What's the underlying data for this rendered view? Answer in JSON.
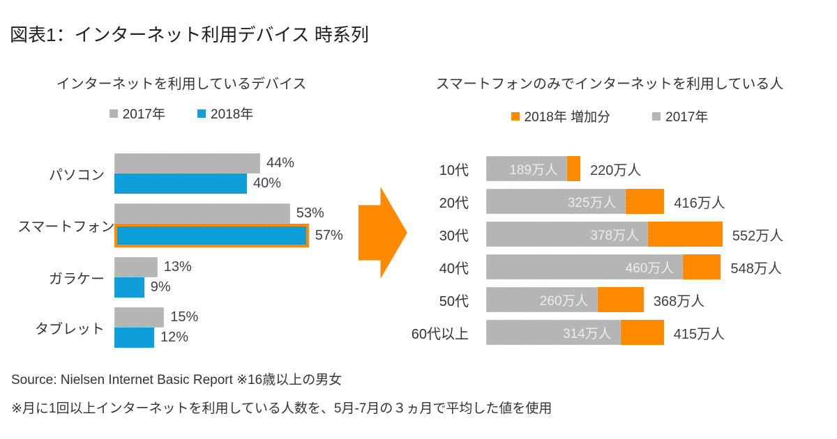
{
  "page_title": "図表1：インターネット利用デバイス 時系列",
  "colors": {
    "gray": "#b5b5b5",
    "blue": "#0f9fd8",
    "orange": "#ff8a00",
    "text": "#333333",
    "valueText": "#3d4049",
    "inbarText": "#ededed",
    "titleText": "#1f1f1f"
  },
  "arrow": {
    "shape": "right-block-arrow",
    "color": "#ff8a00"
  },
  "footer": {
    "source_line": "Source: Nielsen Internet Basic Report  ※16歳以上の男女",
    "note_line": "※月に1回以上インターネットを利用している人数を、5月-7月の３ヵ月で平均した値を使用"
  },
  "chart_data": [
    {
      "type": "bar",
      "orientation": "horizontal",
      "title": "インターネットを利用しているデバイス",
      "legend_position": "top",
      "unit": "%",
      "xlim": [
        0,
        60
      ],
      "grid": false,
      "categories": [
        "パソコン",
        "スマートフォン",
        "ガラケー",
        "タブレット"
      ],
      "series": [
        {
          "name": "2017年",
          "color": "#b5b5b5",
          "values": [
            44,
            53,
            13,
            15
          ]
        },
        {
          "name": "2018年",
          "color": "#0f9fd8",
          "values": [
            40,
            57,
            9,
            12
          ]
        }
      ],
      "value_labels": {
        "y2017": [
          "44%",
          "53%",
          "13%",
          "15%"
        ],
        "y2018": [
          "40%",
          "57%",
          "9%",
          "12%"
        ]
      },
      "highlight": "スマートフォン 2018年 bar outlined in orange"
    },
    {
      "type": "bar",
      "orientation": "horizontal",
      "stacked": true,
      "title": "スマートフォンのみでインターネットを利用している人",
      "legend_position": "top",
      "unit": "万人",
      "xlim": [
        0,
        560
      ],
      "grid": false,
      "categories": [
        "10代",
        "20代",
        "30代",
        "40代",
        "50代",
        "60代以上"
      ],
      "series": [
        {
          "name": "2017年",
          "color": "#b5b5b5",
          "values": [
            189,
            325,
            378,
            460,
            260,
            314
          ]
        },
        {
          "name": "2018年 増加分",
          "color": "#ff8a00",
          "values": [
            31,
            91,
            174,
            88,
            108,
            101
          ]
        }
      ],
      "totals_2018": [
        220,
        416,
        552,
        548,
        368,
        415
      ],
      "bar_labels": [
        "189万人",
        "325万人",
        "378万人",
        "460万人",
        "260万人",
        "314万人"
      ],
      "total_labels": [
        "220万人",
        "416万人",
        "552万人",
        "548万人",
        "368万人",
        "415万人"
      ]
    }
  ]
}
